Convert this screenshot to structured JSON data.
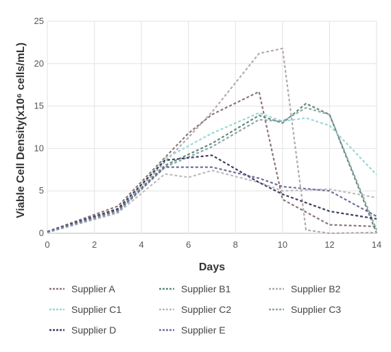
{
  "chart_data": {
    "type": "line",
    "xlabel": "Days",
    "ylabel": "Viable Cell Density(x10⁶ cells/mL)",
    "xlim": [
      0,
      14
    ],
    "ylim": [
      0,
      25
    ],
    "xticks": [
      "0",
      "2",
      "4",
      "6",
      "8",
      "10",
      "12",
      "14"
    ],
    "yticks": [
      "0",
      "5",
      "10",
      "15",
      "20",
      "25"
    ],
    "grid": true,
    "legend_position": "bottom",
    "line_style": "dashed",
    "series": [
      {
        "name": "Supplier A",
        "color": "#8c7472",
        "x": [
          0,
          3,
          6,
          7,
          9,
          10,
          12,
          14
        ],
        "y": [
          0.2,
          3.2,
          11.8,
          14.0,
          16.7,
          4.0,
          1.0,
          0.8
        ]
      },
      {
        "name": "Supplier B1",
        "color": "#5f8a78",
        "x": [
          0,
          3,
          5,
          7,
          9,
          10,
          11,
          12,
          14
        ],
        "y": [
          0.2,
          2.8,
          8.0,
          10.6,
          13.9,
          13.0,
          15.3,
          14.0,
          0.0
        ]
      },
      {
        "name": "Supplier B2",
        "color": "#b4a9ab",
        "x": [
          0,
          3,
          6,
          7,
          9,
          10,
          11,
          12,
          14
        ],
        "y": [
          0.1,
          2.6,
          11.3,
          14.3,
          21.2,
          21.8,
          0.4,
          0.0,
          0.1
        ]
      },
      {
        "name": "Supplier C1",
        "color": "#96d8d4",
        "x": [
          0,
          3,
          5,
          7,
          9,
          10,
          11,
          12,
          14
        ],
        "y": [
          0.2,
          2.7,
          8.8,
          11.8,
          14.2,
          13.2,
          13.6,
          12.7,
          6.9
        ]
      },
      {
        "name": "Supplier C2",
        "color": "#bcbcbc",
        "x": [
          0,
          3,
          5,
          6,
          7,
          9,
          10,
          12,
          14
        ],
        "y": [
          0.1,
          2.4,
          7.0,
          6.6,
          7.4,
          6.0,
          5.0,
          5.2,
          4.2
        ]
      },
      {
        "name": "Supplier C3",
        "color": "#8fa3ab",
        "x": [
          0,
          3,
          5,
          7,
          9,
          10,
          11,
          12,
          14
        ],
        "y": [
          0.1,
          2.5,
          7.8,
          10.2,
          13.4,
          13.2,
          14.8,
          14.0,
          0.4
        ]
      },
      {
        "name": "Supplier D",
        "color": "#3c3b5e",
        "x": [
          0,
          3,
          5,
          7,
          9,
          10,
          12,
          14
        ],
        "y": [
          0.2,
          2.9,
          8.6,
          9.2,
          6.0,
          4.6,
          2.6,
          1.7
        ]
      },
      {
        "name": "Supplier E",
        "color": "#6e6b9b",
        "x": [
          0,
          3,
          5,
          7,
          9,
          10,
          12,
          14
        ],
        "y": [
          0.2,
          2.7,
          7.8,
          7.8,
          6.5,
          5.5,
          5.0,
          2.0
        ]
      }
    ]
  }
}
